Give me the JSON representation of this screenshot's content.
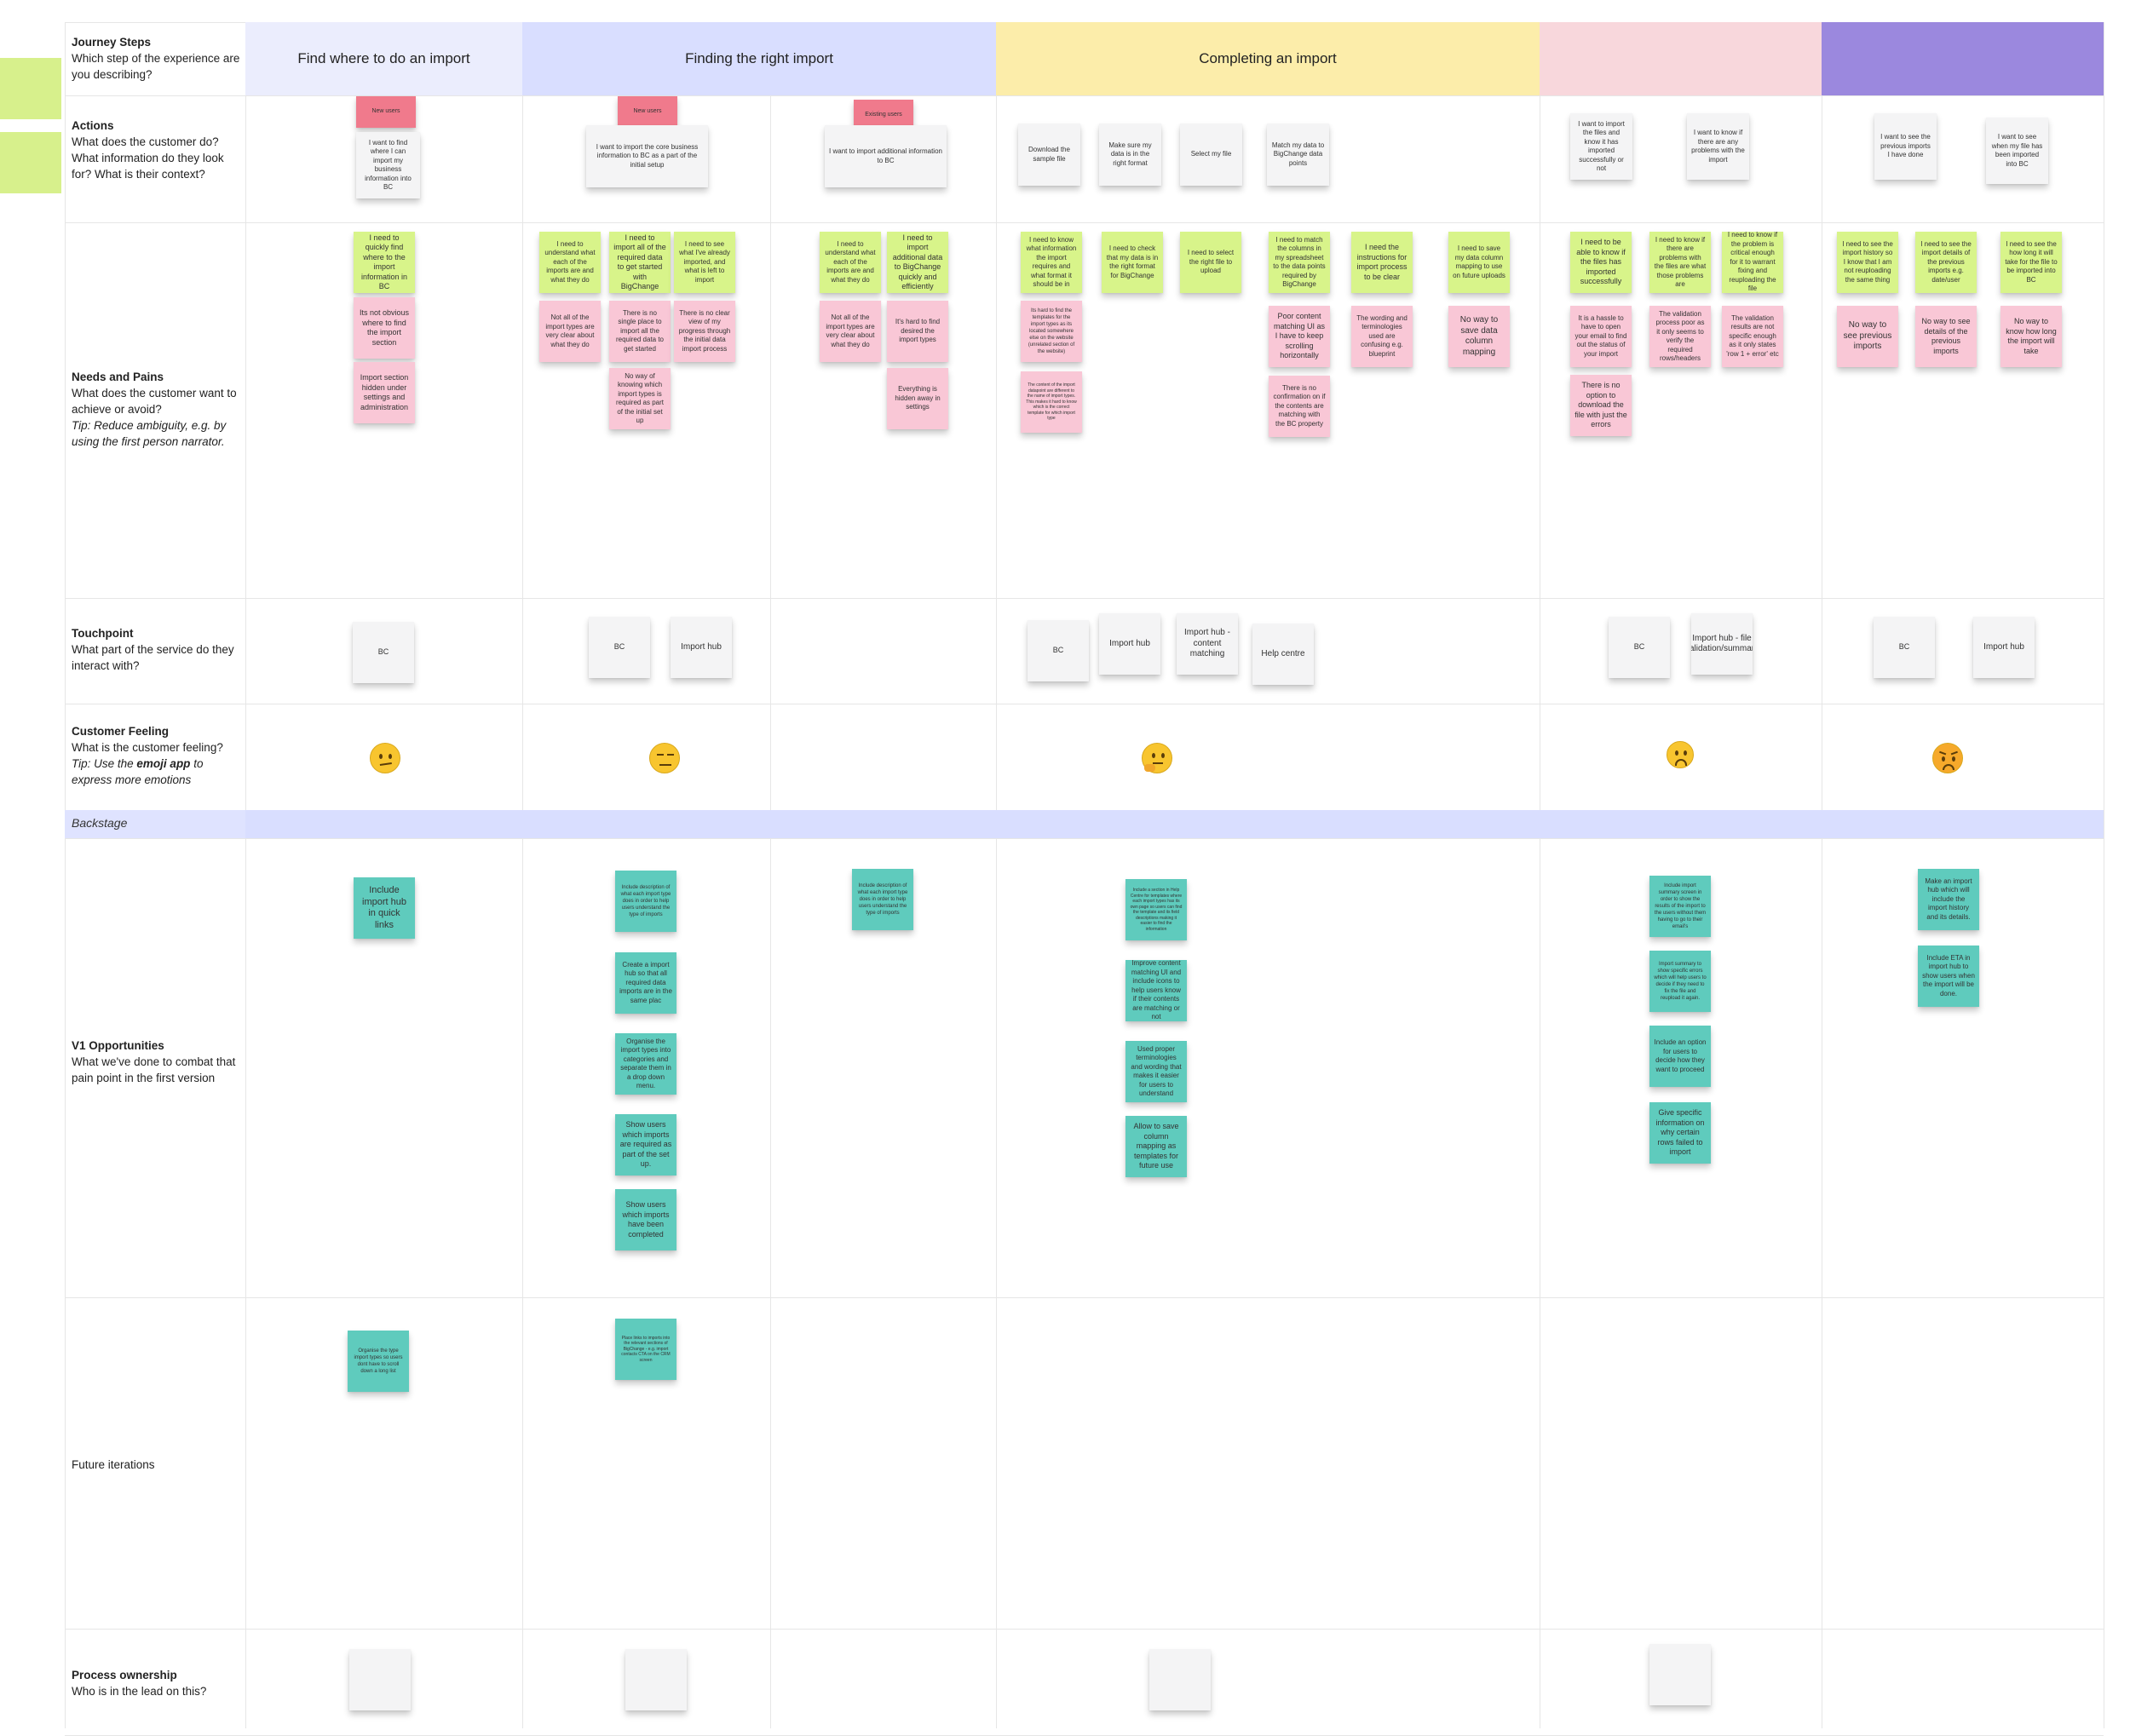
{
  "stages": [
    {
      "label": "Find where to do an import",
      "color": "#ebedfd"
    },
    {
      "label": "Finding the right import",
      "color": "#d9deff"
    },
    {
      "label": "Completing an import",
      "color": "#fcedaa"
    },
    {
      "label": "",
      "color": "#f8d7dc"
    },
    {
      "label": "",
      "color": "#9b88de"
    }
  ],
  "rows": {
    "journey": {
      "title": "Journey Steps",
      "sub": "Which step of the experience are you describing?"
    },
    "actions": {
      "title": "Actions",
      "sub": "What does the customer do? What information do they look for? What is their context?"
    },
    "needs": {
      "title": "Needs and Pains",
      "sub": "What does the customer want to achieve or avoid?",
      "tip": "Tip: Reduce ambiguity, e.g. by using the first person narrator."
    },
    "touch": {
      "title": "Touchpoint",
      "sub": "What part of the service do they interact with?"
    },
    "feeling": {
      "title": "Customer Feeling",
      "sub": "What is the customer feeling?",
      "tip_prefix": "Tip: Use the ",
      "tip_bold": "emoji app",
      "tip_suffix": " to express more emotions"
    },
    "backstage": {
      "title": "Backstage"
    },
    "v1": {
      "title": "V1 Opportunities",
      "sub": "What we've done to combat that pain point in the first version"
    },
    "future": {
      "title": "Future iterations"
    },
    "ownership": {
      "title": "Process ownership",
      "sub": "Who is in the lead on this?"
    }
  },
  "tags": {
    "new_users": "New users",
    "existing_users": "Existing users"
  },
  "actions": {
    "a1": "I want to find where I can import my business information into BC",
    "a2": "I want to import the core business information to BC as a part of the initial setup",
    "a3": "I want to import additional information to BC",
    "a4": "Download the sample file",
    "a5": "Make sure my data is in the right format",
    "a6": "Select my file",
    "a7": "Match my data to BigChange data points",
    "a8": "I want to import the files and know it has imported successfully or not",
    "a9": "I want to know if there are any problems with the import",
    "a10": "I want to see the previous imports I have done",
    "a11": "I want to see when my file has been imported into BC"
  },
  "needs": {
    "g1": "I need to quickly find where to the import information in BC",
    "p1": "Its not obvious where to find the import section",
    "p2": "Import section hidden under settings and administration",
    "g2": "I need to understand what each of the imports are and what they do",
    "g3": "I need to import all of the required data to get started with BigChange",
    "g4": "I need to see what I've already imported, and what is left to import",
    "p3": "Not all of the import types are very clear about what they do",
    "p4": "There is no single place to import all the required data to get started",
    "p5": "There is no clear view of my progress through the initial data import process",
    "p6": "No way of knowing which import types is required as part of the initial set up",
    "g5": "I need to understand what each of the imports are and what they do",
    "g6": "I need to import additional data to BigChange quickly and efficiently",
    "p7": "Not all of the import types are very clear about what they do",
    "p8": "It's hard to find desired the import types",
    "p9": "Everything is hidden away in settings",
    "g7": "I need to know what information the import requires and what format it should be in",
    "g8": "I need to check that my data is in the right format for BigChange",
    "g9": "I need to select the right file to upload",
    "g10": "I need to match the columns in my spreadsheet to the data points required by BigChange",
    "g11": "I need the instructions for import process to be clear",
    "g12": "I need to save my data column mapping to use on future uploads",
    "p10": "Its hard to find the templates for the import types as its located somewhere else on the website (unrelated section of the website)",
    "p11": "The content of the import datapoint are different to the name of import types. This makes it hard to know which is the correct template for which import type",
    "p12": "Poor content matching UI as I have to keep scrolling horizontally",
    "p13": "The wording and terminologies used are confusing e.g. blueprint",
    "p14": "No way to save data column mapping",
    "p15": "There is no confirmation on if the contents are matching with the BC property",
    "g13": "I need to be able to know if the files has imported successfully",
    "g14": "I need to know if there are problems with the files are what those problems are",
    "g15": "I need to know if the problem is critical enough for it to warrant fixing and reuploading the file",
    "p16": "It is a hassle to have to open your email to find out the status of your import",
    "p17": "The validation process poor as it only seems to verify the required rows/headers",
    "p18": "The validation results are not specific enough as it only states 'row 1 + error' etc",
    "p19": "There is no option to download the file with just the errors",
    "g16": "I need to see the import history so I know that I am not reuploading the same thing",
    "g17": "I need to see the import details of the previous imports e.g. date/user",
    "g18": "I need to see the how long it will take for the file to be imported into BC",
    "p20": "No way to see previous imports",
    "p21": "No way to see details of the previous imports",
    "p22": "No way to know how long the import will take"
  },
  "touchpoints": {
    "t1": "BC",
    "t2": "BC",
    "t3": "Import hub",
    "t4": "BC",
    "t5": "Import hub",
    "t6": "Import hub - content matching",
    "t7": "Help centre",
    "t8": "BC",
    "t9": "Import hub - file validation/summary",
    "t10": "BC",
    "t11": "Import hub"
  },
  "feelings": [
    "confused-face",
    "unamused-face",
    "thinking-face",
    "slightly-frowning-face",
    "angry-face"
  ],
  "v1": {
    "o1": "Include import hub in quick links",
    "o2": "Include description of what each import type does in order to help users understand the type of imports",
    "o3": "Create a import hub so that all required data imports are in the same plac",
    "o4": "Organise the import types into categories and separate them in a drop down menu.",
    "o5": "Show users which imports are required as part of the set up.",
    "o6": "Show users which imports have been completed",
    "o7": "Include description of what each import type does in order to help users understand the type of imports",
    "o8": "Include a section in Help Centre for templates where each import types has its own page so users can find the template and its field descriptions making it easier to find the information",
    "o9": "Improve content matching UI and include icons to help users know if their contents are matching or not",
    "o10": "Used proper terminologies and wording that makes it easier for users to understand",
    "o11": "Allow to save column mapping as templates for future use",
    "o12": "Include import summary screen in order to show the results of the import to the users without them having to go to their email's",
    "o13": "Import summary to show specific errors which will help users to decide if they need to fix the file and reupload it again.",
    "o14": "Include an option for users to decide how they want to proceed",
    "o15": "Give specific information on why certain rows failed to import",
    "o16": "Make an import hub which will include the import history and its details.",
    "o17": "Include ETA in import hub to show users when the import will be done."
  },
  "future": {
    "f1": "Organise the type import types so users dont have to scroll down a long list",
    "f2": "Place links to imports into the relevant sections of BigChange - e.g. import contacts CTA on the CRM screen"
  }
}
